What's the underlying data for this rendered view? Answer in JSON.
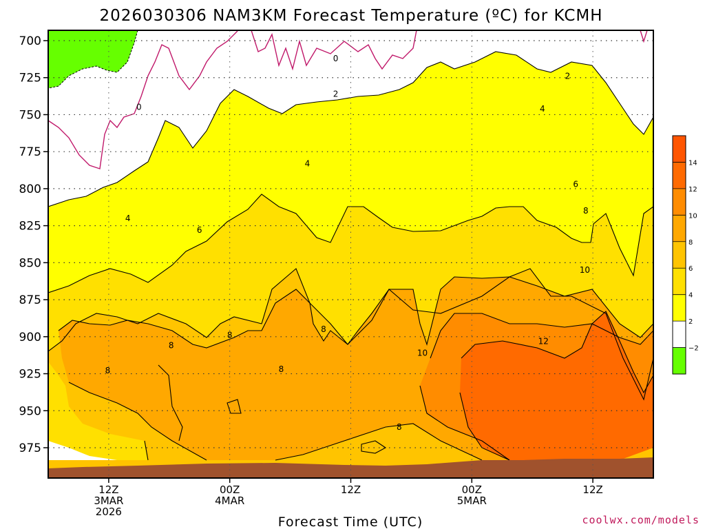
{
  "chart_data": {
    "type": "heatmap",
    "title": "2026030306 NAM3KM Forecast Temperature (ºC) for KCMH",
    "xlabel": "Forecast Time (UTC)",
    "ylabel": "",
    "credit": "coolwx.com/models",
    "x_unit": "forecast hour from 2026-03-03 06Z",
    "xlim": [
      0,
      60
    ],
    "ylim": [
      985,
      700
    ],
    "y_scale": "pressure",
    "grid": true,
    "yticks": [
      {
        "value": 700,
        "label": "700"
      },
      {
        "value": 725,
        "label": "725"
      },
      {
        "value": 750,
        "label": "750"
      },
      {
        "value": 775,
        "label": "775"
      },
      {
        "value": 800,
        "label": "800"
      },
      {
        "value": 825,
        "label": "825"
      },
      {
        "value": 850,
        "label": "850"
      },
      {
        "value": 875,
        "label": "875"
      },
      {
        "value": 900,
        "label": "900"
      },
      {
        "value": 925,
        "label": "925"
      },
      {
        "value": 950,
        "label": "950"
      },
      {
        "value": 975,
        "label": "975"
      }
    ],
    "xticks": [
      {
        "hour": 6,
        "lines": [
          "12Z",
          "3MAR",
          "2026"
        ]
      },
      {
        "hour": 18,
        "lines": [
          "00Z",
          "4MAR"
        ]
      },
      {
        "hour": 30,
        "lines": [
          "12Z"
        ]
      },
      {
        "hour": 42,
        "lines": [
          "00Z",
          "5MAR"
        ]
      },
      {
        "hour": 54,
        "lines": [
          "12Z"
        ]
      }
    ],
    "legend": {
      "position": "right",
      "levels": [
        {
          "from": -4,
          "to": -2,
          "color": "#66ff00"
        },
        {
          "from": -2,
          "to": 2,
          "color": "#ffffff"
        },
        {
          "from": 2,
          "to": 4,
          "color": "#ffff00"
        },
        {
          "from": 4,
          "to": 6,
          "color": "#ffe000"
        },
        {
          "from": 6,
          "to": 8,
          "color": "#ffc400"
        },
        {
          "from": 8,
          "to": 10,
          "color": "#ffa800"
        },
        {
          "from": 10,
          "to": 12,
          "color": "#ff8c00"
        },
        {
          "from": 12,
          "to": 14,
          "color": "#ff6a00"
        },
        {
          "from": 14,
          "to": 16,
          "color": "#ff5500"
        }
      ],
      "tick_labels": [
        "−2",
        "2",
        "4",
        "6",
        "8",
        "10",
        "12",
        "14"
      ]
    },
    "contour_labels": [
      {
        "text": "0",
        "hour": 9,
        "p": 745
      },
      {
        "text": "0",
        "hour": 28.5,
        "p": 712
      },
      {
        "text": "2",
        "hour": 28.5,
        "p": 736
      },
      {
        "text": "2",
        "hour": 51.5,
        "p": 724
      },
      {
        "text": "4",
        "hour": 7.9,
        "p": 820
      },
      {
        "text": "4",
        "hour": 25.7,
        "p": 783
      },
      {
        "text": "4",
        "hour": 49,
        "p": 746
      },
      {
        "text": "6",
        "hour": 15,
        "p": 828
      },
      {
        "text": "6",
        "hour": 52.3,
        "p": 797
      },
      {
        "text": "8",
        "hour": 53.3,
        "p": 815
      },
      {
        "text": "8",
        "hour": 12.2,
        "p": 906
      },
      {
        "text": "8",
        "hour": 5.9,
        "p": 923
      },
      {
        "text": "8",
        "hour": 18,
        "p": 899
      },
      {
        "text": "8",
        "hour": 23.1,
        "p": 922
      },
      {
        "text": "8",
        "hour": 27.3,
        "p": 895
      },
      {
        "text": "8",
        "hour": 34.8,
        "p": 961
      },
      {
        "text": "10",
        "hour": 37.1,
        "p": 911
      },
      {
        "text": "10",
        "hour": 53.2,
        "p": 855
      },
      {
        "text": "12",
        "hour": 49.1,
        "p": 903
      }
    ],
    "surface_pressure_hpa": [
      983,
      983,
      982,
      982,
      982,
      982,
      982,
      983,
      983,
      983,
      982,
      982,
      981,
      980
    ]
  }
}
